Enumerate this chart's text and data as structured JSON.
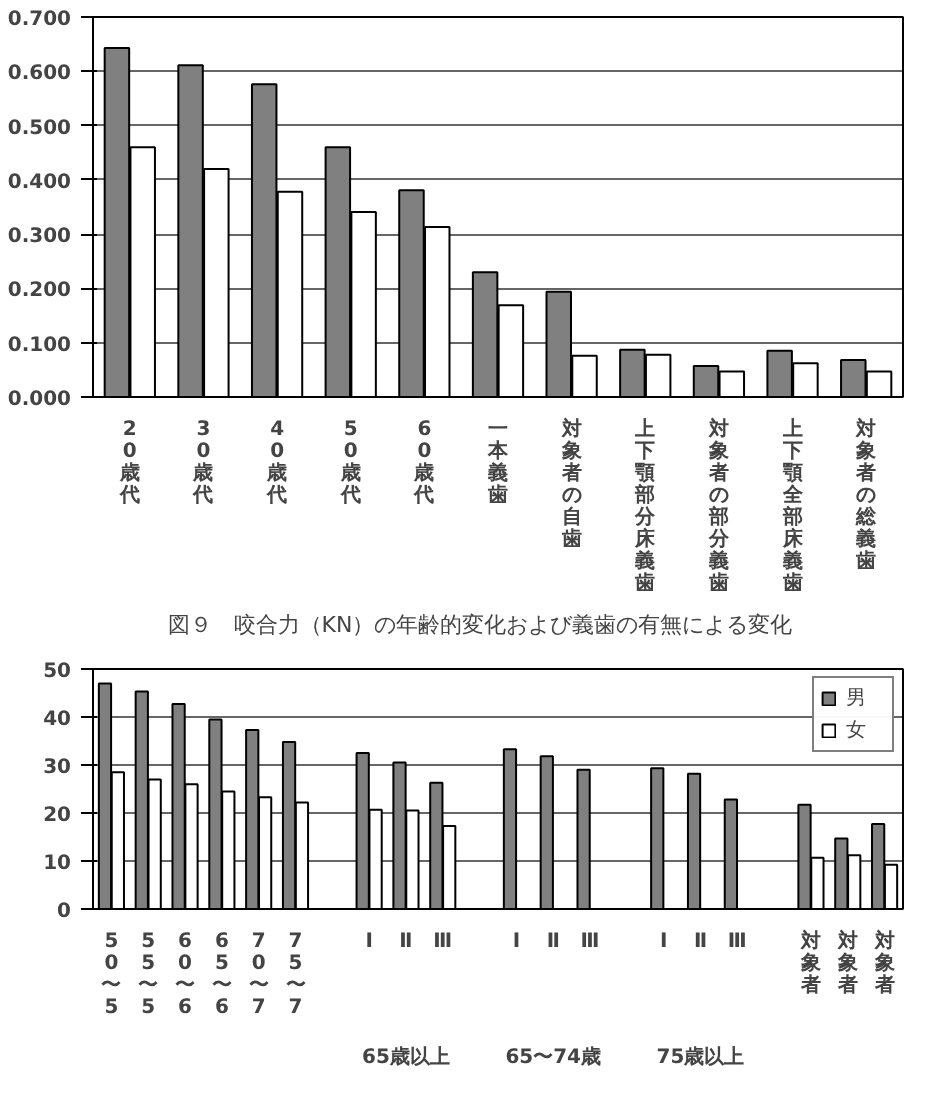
{
  "chart_data": [
    {
      "type": "bar",
      "categories": [
        "20歳代",
        "30歳代",
        "40歳代",
        "50歳代",
        "60歳代",
        "一本義歯",
        "対象者の自歯",
        "上下顎部分床義歯",
        "対象者の部分義歯",
        "上下顎全部床義歯",
        "対象者の総義歯"
      ],
      "series": [
        {
          "color": "#808080",
          "values": [
            0.643,
            0.611,
            0.576,
            0.46,
            0.381,
            0.23,
            0.194,
            0.087,
            0.057,
            0.085,
            0.068
          ]
        },
        {
          "color": "#ffffff",
          "values": [
            0.46,
            0.42,
            0.378,
            0.341,
            0.313,
            0.169,
            0.076,
            0.078,
            0.047,
            0.062,
            0.047
          ]
        }
      ],
      "ylim": [
        0,
        0.7
      ],
      "yticks": [
        {
          "value": 0,
          "label": "0.000"
        },
        {
          "value": 0.1,
          "label": "0.100"
        },
        {
          "value": 0.2,
          "label": "0.200"
        },
        {
          "value": 0.3,
          "label": "0.300"
        },
        {
          "value": 0.4,
          "label": "0.400"
        },
        {
          "value": 0.5,
          "label": "0.500"
        },
        {
          "value": 0.6,
          "label": "0.600"
        },
        {
          "value": 0.7,
          "label": "0.700"
        }
      ],
      "grid": "y",
      "annotations": [
        "図９　咬合力（KN）の年齢的変化および義歯の有無による変化"
      ]
    },
    {
      "type": "bar",
      "categories": [
        "50〜5",
        "55〜5",
        "60〜6",
        "65〜6",
        "70〜7",
        "75〜7",
        null,
        "Ⅰ",
        "Ⅱ",
        "Ⅲ",
        null,
        "Ⅰ",
        "Ⅱ",
        "Ⅲ",
        null,
        "Ⅰ",
        "Ⅱ",
        "Ⅲ",
        null,
        "対象者",
        "対象者",
        "対象者"
      ],
      "series": [
        {
          "name": "男",
          "color": "#808080",
          "values": [
            47,
            45.3,
            42.7,
            39.5,
            37.3,
            34.8,
            null,
            32.5,
            30.5,
            26.3,
            null,
            33.3,
            31.8,
            29,
            null,
            29.3,
            28.2,
            22.8,
            null,
            21.7,
            14.7,
            17.7
          ]
        },
        {
          "name": "女",
          "color": "#ffffff",
          "values": [
            28.5,
            27,
            26,
            24.5,
            23.3,
            22.2,
            null,
            20.7,
            20.5,
            17.3,
            null,
            null,
            null,
            null,
            null,
            null,
            null,
            null,
            null,
            10.7,
            11.2,
            9.2
          ]
        }
      ],
      "ylim": [
        0,
        50
      ],
      "yticks": [
        0,
        10,
        20,
        30,
        40,
        50
      ],
      "grid": "y",
      "legend": "top right",
      "annotations": [
        "65歳以上",
        "65〜74歳",
        "75歳以上"
      ]
    }
  ]
}
